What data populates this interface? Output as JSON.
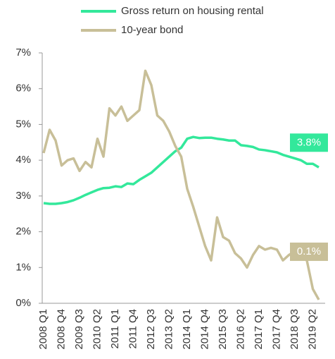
{
  "chart_data": {
    "type": "line",
    "categories": [
      "2008 Q1",
      null,
      null,
      "2008 Q4",
      null,
      null,
      "2009 Q3",
      null,
      null,
      "2010 Q2",
      null,
      null,
      "2011 Q1",
      null,
      null,
      "2011 Q4",
      null,
      null,
      "2012 Q3",
      null,
      null,
      "2013 Q2",
      null,
      null,
      "2014 Q1",
      null,
      null,
      "2014 Q4",
      null,
      null,
      "2015 Q3",
      null,
      null,
      "2016 Q2",
      null,
      null,
      "2017 Q1",
      null,
      null,
      "2017 Q4",
      null,
      null,
      "2018 Q3",
      null,
      null,
      "2019 Q2",
      null
    ],
    "series": [
      {
        "name": "Gross return on housing rental",
        "color": "#33e89b",
        "values": [
          2.8,
          2.78,
          2.78,
          2.8,
          2.83,
          2.88,
          2.95,
          3.03,
          3.1,
          3.17,
          3.22,
          3.23,
          3.27,
          3.25,
          3.35,
          3.33,
          3.45,
          3.55,
          3.65,
          3.8,
          3.95,
          4.1,
          4.25,
          4.35,
          4.6,
          4.65,
          4.62,
          4.63,
          4.63,
          4.6,
          4.58,
          4.55,
          4.55,
          4.42,
          4.4,
          4.37,
          4.3,
          4.28,
          4.25,
          4.22,
          4.15,
          4.1,
          4.05,
          4.0,
          3.9,
          3.9,
          3.8
        ],
        "value_labels": [
          null,
          null,
          null,
          null,
          null,
          null,
          null,
          null,
          null,
          null,
          null,
          null,
          null,
          null,
          null,
          null,
          null,
          null,
          null,
          null,
          null,
          null,
          null,
          null,
          null,
          null,
          null,
          null,
          null,
          null,
          null,
          null,
          null,
          null,
          null,
          null,
          null,
          null,
          null,
          null,
          null,
          null,
          null,
          null,
          null,
          null,
          "3.8%"
        ]
      },
      {
        "name": "10-year bond",
        "color": "#c8bf98",
        "values": [
          4.2,
          4.85,
          4.55,
          3.85,
          4.0,
          4.05,
          3.7,
          3.95,
          3.8,
          4.6,
          4.1,
          5.45,
          5.25,
          5.5,
          5.1,
          5.25,
          5.4,
          6.5,
          6.1,
          5.25,
          5.1,
          4.8,
          4.4,
          4.1,
          3.2,
          2.7,
          2.15,
          1.6,
          1.2,
          2.4,
          1.85,
          1.75,
          1.4,
          1.25,
          1.0,
          1.35,
          1.6,
          1.5,
          1.55,
          1.5,
          1.2,
          1.35,
          1.45,
          1.3,
          1.2,
          0.4,
          0.1
        ],
        "value_labels": [
          null,
          null,
          null,
          null,
          null,
          null,
          null,
          null,
          null,
          null,
          null,
          null,
          null,
          null,
          null,
          null,
          null,
          null,
          null,
          null,
          null,
          null,
          null,
          null,
          null,
          null,
          null,
          null,
          null,
          null,
          null,
          null,
          null,
          null,
          null,
          null,
          null,
          null,
          null,
          null,
          null,
          null,
          null,
          null,
          null,
          null,
          "0.1%"
        ]
      }
    ],
    "ylim": [
      0,
      7
    ],
    "yticks": [
      {
        "value": 0,
        "label": "0%"
      },
      {
        "value": 1,
        "label": "1%"
      },
      {
        "value": 2,
        "label": "2%"
      },
      {
        "value": 3,
        "label": "3%"
      },
      {
        "value": 4,
        "label": "4%"
      },
      {
        "value": 5,
        "label": "5%"
      },
      {
        "value": 6,
        "label": "6%"
      },
      {
        "value": 7,
        "label": "7%"
      }
    ],
    "grid": false,
    "legend": "top"
  }
}
